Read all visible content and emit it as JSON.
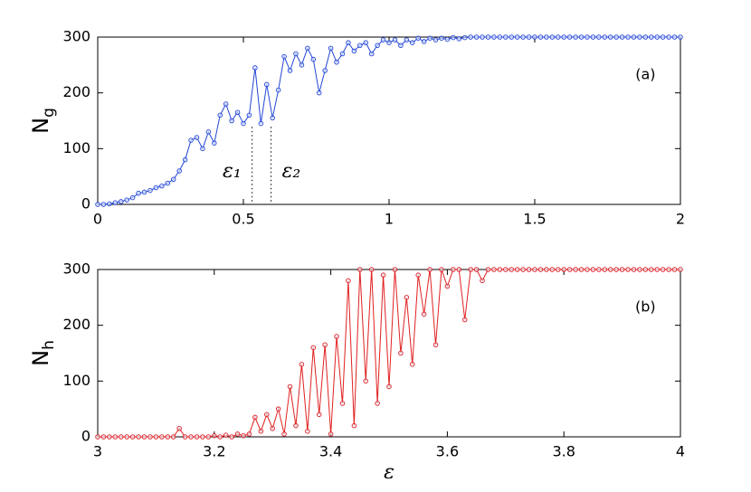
{
  "chart_data": [
    {
      "type": "line",
      "ylabel": {
        "text": "N",
        "subscript": "g"
      },
      "panel_label": "(a)",
      "color": "#2346d6",
      "xlim": [
        0,
        2
      ],
      "ylim": [
        0,
        300
      ],
      "xticks": [
        0,
        0.5,
        1,
        1.5,
        2
      ],
      "yticks": [
        0,
        100,
        200,
        300
      ],
      "x": [
        0,
        0.02,
        0.04,
        0.06,
        0.08,
        0.1,
        0.12,
        0.14,
        0.16,
        0.18,
        0.2,
        0.22,
        0.24,
        0.26,
        0.28,
        0.3,
        0.32,
        0.34,
        0.36,
        0.38,
        0.4,
        0.42,
        0.44,
        0.46,
        0.48,
        0.5,
        0.52,
        0.54,
        0.56,
        0.58,
        0.6,
        0.62,
        0.64,
        0.66,
        0.68,
        0.7,
        0.72,
        0.74,
        0.76,
        0.78,
        0.8,
        0.82,
        0.84,
        0.86,
        0.88,
        0.9,
        0.92,
        0.94,
        0.96,
        0.98,
        1,
        1.02,
        1.04,
        1.06,
        1.08,
        1.1,
        1.12,
        1.14,
        1.16,
        1.18,
        1.2,
        1.22,
        1.24,
        1.26,
        1.28,
        1.3,
        1.32,
        1.34,
        1.36,
        1.38,
        1.4,
        1.42,
        1.44,
        1.46,
        1.48,
        1.5,
        1.52,
        1.54,
        1.56,
        1.58,
        1.6,
        1.62,
        1.64,
        1.66,
        1.68,
        1.7,
        1.72,
        1.74,
        1.76,
        1.78,
        1.8,
        1.82,
        1.84,
        1.86,
        1.88,
        1.9,
        1.92,
        1.94,
        1.96,
        1.98,
        2
      ],
      "values": [
        0,
        0,
        1,
        3,
        5,
        8,
        12,
        20,
        22,
        25,
        30,
        33,
        38,
        45,
        60,
        80,
        115,
        120,
        100,
        130,
        110,
        160,
        180,
        150,
        165,
        145,
        160,
        245,
        145,
        215,
        155,
        205,
        265,
        240,
        270,
        250,
        280,
        260,
        200,
        240,
        280,
        255,
        270,
        290,
        275,
        285,
        290,
        270,
        285,
        295,
        290,
        295,
        285,
        295,
        290,
        298,
        292,
        298,
        295,
        298,
        296,
        299,
        297,
        299,
        300,
        300,
        300,
        300,
        300,
        300,
        300,
        300,
        300,
        300,
        300,
        300,
        300,
        300,
        300,
        300,
        300,
        300,
        300,
        300,
        300,
        300,
        300,
        300,
        300,
        300,
        300,
        300,
        300,
        300,
        300,
        300,
        300,
        300,
        300,
        300,
        300
      ],
      "vlines": [
        {
          "x": 0.53,
          "ymax": 139,
          "label": "ε₁"
        },
        {
          "x": 0.595,
          "ymax": 139,
          "label": "ε₂"
        }
      ]
    },
    {
      "type": "line",
      "ylabel": {
        "text": "N",
        "subscript": "h"
      },
      "xlabel": "ε",
      "panel_label": "(b)",
      "color": "#e02020",
      "xlim": [
        3,
        4
      ],
      "ylim": [
        0,
        300
      ],
      "xticks": [
        3,
        3.2,
        3.4,
        3.6,
        3.8,
        4
      ],
      "yticks": [
        0,
        100,
        200,
        300
      ],
      "x": [
        3,
        3.01,
        3.02,
        3.03,
        3.04,
        3.05,
        3.06,
        3.07,
        3.08,
        3.09,
        3.1,
        3.11,
        3.12,
        3.13,
        3.14,
        3.15,
        3.16,
        3.17,
        3.18,
        3.19,
        3.2,
        3.21,
        3.22,
        3.23,
        3.24,
        3.25,
        3.26,
        3.27,
        3.28,
        3.29,
        3.3,
        3.31,
        3.32,
        3.33,
        3.34,
        3.35,
        3.36,
        3.37,
        3.38,
        3.39,
        3.4,
        3.41,
        3.42,
        3.43,
        3.44,
        3.45,
        3.46,
        3.47,
        3.48,
        3.49,
        3.5,
        3.51,
        3.52,
        3.53,
        3.54,
        3.55,
        3.56,
        3.57,
        3.58,
        3.59,
        3.6,
        3.61,
        3.62,
        3.63,
        3.64,
        3.65,
        3.66,
        3.67,
        3.68,
        3.69,
        3.7,
        3.71,
        3.72,
        3.73,
        3.74,
        3.75,
        3.76,
        3.77,
        3.78,
        3.79,
        3.8,
        3.81,
        3.82,
        3.83,
        3.84,
        3.85,
        3.86,
        3.87,
        3.88,
        3.89,
        3.9,
        3.91,
        3.92,
        3.93,
        3.94,
        3.95,
        3.96,
        3.97,
        3.98,
        3.99,
        4
      ],
      "values": [
        0,
        0,
        0,
        0,
        0,
        0,
        0,
        0,
        0,
        0,
        0,
        0,
        0,
        0,
        15,
        0,
        0,
        0,
        0,
        0,
        2,
        0,
        3,
        0,
        5,
        2,
        5,
        35,
        10,
        40,
        15,
        50,
        5,
        90,
        20,
        130,
        10,
        160,
        40,
        165,
        5,
        180,
        60,
        280,
        20,
        300,
        100,
        300,
        60,
        290,
        90,
        300,
        150,
        250,
        130,
        290,
        220,
        300,
        165,
        300,
        270,
        300,
        300,
        210,
        300,
        300,
        280,
        300,
        300,
        300,
        300,
        300,
        300,
        300,
        300,
        300,
        300,
        300,
        300,
        300,
        300,
        300,
        300,
        300,
        300,
        300,
        300,
        300,
        300,
        300,
        300,
        300,
        300,
        300,
        300,
        300,
        300,
        300,
        300,
        300,
        300
      ]
    }
  ]
}
